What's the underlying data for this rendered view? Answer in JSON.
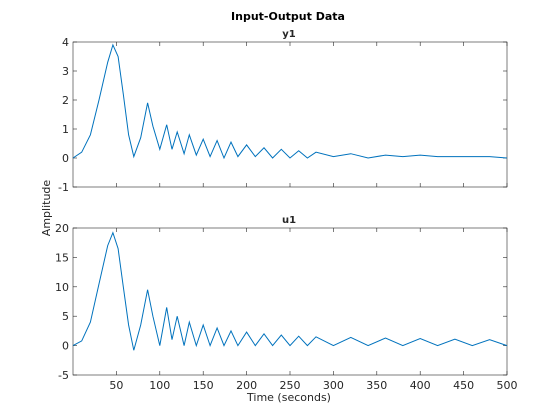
{
  "chart_data": {
    "type": "line",
    "title": "Input-Output Data",
    "xlabel": "Time (seconds)",
    "ylabel": "Amplitude",
    "color": "#0072BD",
    "xlim": [
      0,
      500
    ],
    "xticks": [
      50,
      100,
      150,
      200,
      250,
      300,
      350,
      400,
      450,
      500
    ],
    "grid": false,
    "panels": [
      {
        "title": "y1",
        "ylim": [
          -1,
          4
        ],
        "yticks": [
          -1,
          0,
          1,
          2,
          3,
          4
        ],
        "series": [
          {
            "x": [
              0,
              10,
              20,
              30,
              40,
              46,
              52,
              58,
              64,
              70,
              78,
              86,
              92,
              100,
              108,
              114,
              120,
              128,
              134,
              142,
              150,
              158,
              166,
              174,
              182,
              190,
              200,
              210,
              220,
              230,
              240,
              250,
              260,
              270,
              280,
              300,
              320,
              340,
              360,
              380,
              400,
              420,
              440,
              460,
              480,
              500
            ],
            "values": [
              0.0,
              0.2,
              0.8,
              2.0,
              3.3,
              3.9,
              3.5,
              2.2,
              0.8,
              0.05,
              0.7,
              1.9,
              1.1,
              0.3,
              1.15,
              0.3,
              0.9,
              0.15,
              0.8,
              0.1,
              0.65,
              0.05,
              0.6,
              0.0,
              0.55,
              0.05,
              0.45,
              0.05,
              0.35,
              0.0,
              0.3,
              0.0,
              0.25,
              0.0,
              0.2,
              0.05,
              0.15,
              0.0,
              0.1,
              0.05,
              0.1,
              0.05,
              0.05,
              0.05,
              0.05,
              0.0
            ]
          }
        ]
      },
      {
        "title": "u1",
        "ylim": [
          -5,
          20
        ],
        "yticks": [
          -5,
          0,
          5,
          10,
          15,
          20
        ],
        "series": [
          {
            "x": [
              0,
              10,
              20,
              30,
              40,
              46,
              52,
              58,
              64,
              70,
              78,
              86,
              92,
              100,
              108,
              114,
              120,
              128,
              134,
              142,
              150,
              158,
              166,
              174,
              182,
              190,
              200,
              210,
              220,
              230,
              240,
              250,
              260,
              270,
              280,
              300,
              320,
              340,
              360,
              380,
              400,
              420,
              440,
              460,
              480,
              500
            ],
            "values": [
              0.0,
              0.8,
              4.0,
              10.5,
              17.0,
              19.2,
              16.5,
              10.0,
              3.5,
              -0.8,
              3.5,
              9.5,
              5.0,
              0.0,
              6.5,
              1.0,
              5.0,
              0.0,
              4.0,
              0.0,
              3.5,
              0.0,
              3.0,
              0.0,
              2.5,
              0.0,
              2.3,
              0.0,
              2.0,
              0.0,
              1.8,
              0.0,
              1.6,
              0.0,
              1.5,
              0.0,
              1.4,
              0.0,
              1.3,
              0.0,
              1.2,
              0.0,
              1.1,
              0.0,
              1.0,
              0.0
            ]
          }
        ]
      }
    ]
  }
}
